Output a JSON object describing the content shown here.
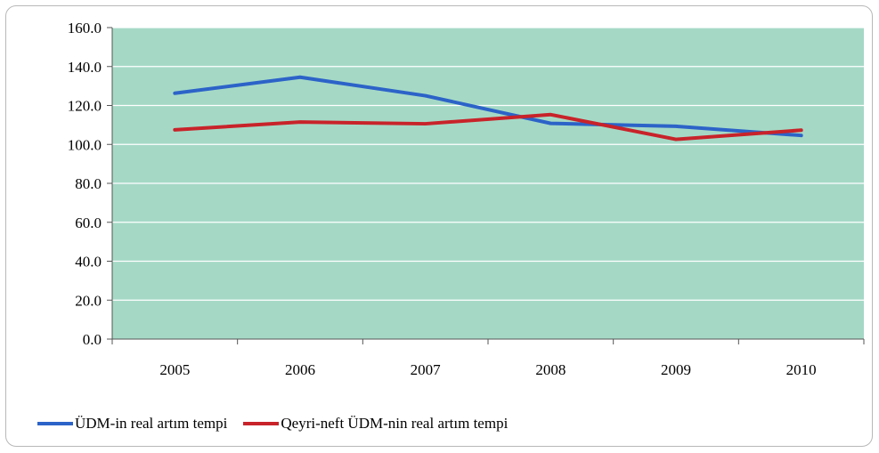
{
  "chart_data": {
    "type": "line",
    "categories": [
      "2005",
      "2006",
      "2007",
      "2008",
      "2009",
      "2010"
    ],
    "series": [
      {
        "name": "ÜDM-in real artım tempi",
        "color": "#2c63c8",
        "values": [
          126.3,
          134.5,
          125.0,
          110.8,
          109.3,
          104.6
        ]
      },
      {
        "name": "Qeyri-neft ÜDM-nin real artım tempi",
        "color": "#c8232a",
        "values": [
          107.5,
          111.5,
          110.6,
          115.3,
          102.6,
          107.3
        ]
      }
    ],
    "ylim": [
      0,
      160
    ],
    "yticks": [
      "0.0",
      "20.0",
      "40.0",
      "60.0",
      "80.0",
      "100.0",
      "120.0",
      "140.0",
      "160.0"
    ],
    "plot_background": "#a5d9c6",
    "gridline_color": "#ffffff",
    "grid": true,
    "legend_position": "bottom-left"
  }
}
